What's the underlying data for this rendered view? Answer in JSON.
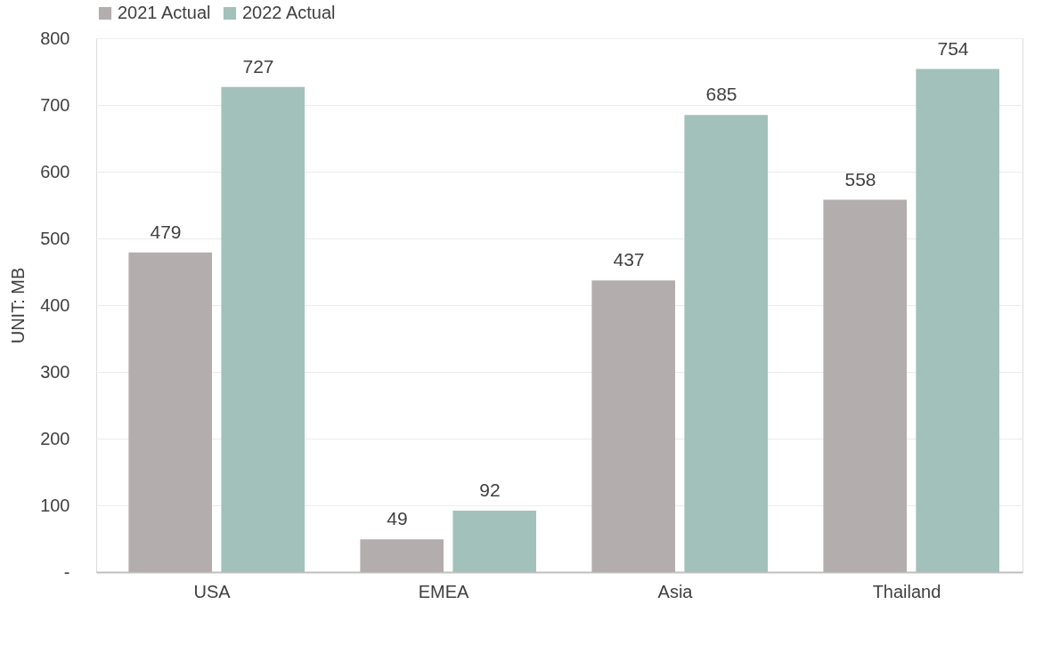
{
  "chart_data": {
    "type": "bar",
    "ylabel": "UNIT: MB",
    "categories": [
      "USA",
      "EMEA",
      "Asia",
      "Thailand"
    ],
    "series": [
      {
        "name": "2021 Actual",
        "color": "#b3adad",
        "values": [
          479,
          49,
          437,
          558
        ]
      },
      {
        "name": "2022 Actual",
        "color": "#a2c1ba",
        "values": [
          727,
          92,
          685,
          754
        ]
      }
    ],
    "ylim": [
      0,
      800
    ],
    "yticks": [
      {
        "value": 0,
        "label": "-"
      },
      100,
      200,
      300,
      400,
      500,
      600,
      700,
      800
    ],
    "grid": "y",
    "legend": "top",
    "data_labels": true
  }
}
